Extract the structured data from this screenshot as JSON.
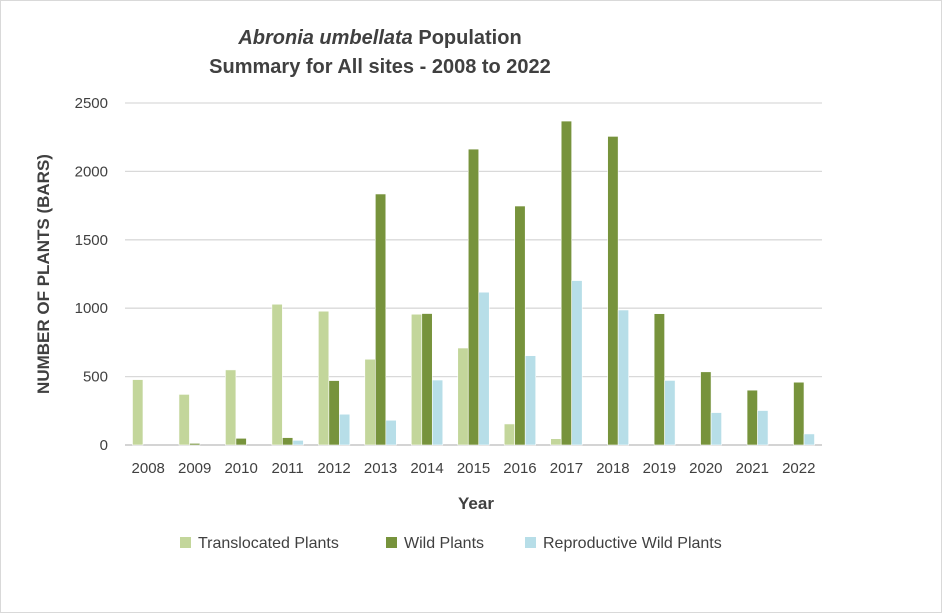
{
  "chart_data": {
    "type": "bar",
    "title_italic": "Abronia umbellata",
    "title_rest": " Population",
    "title_line2": "Summary for All sites - 2008 to 2022",
    "xlabel": "Year",
    "ylabel": "NUMBER OF PLANTS  (BARS)",
    "ylim": [
      0,
      2500
    ],
    "yticks": [
      0,
      500,
      1000,
      1500,
      2000,
      2500
    ],
    "grid": true,
    "legend_position": "bottom",
    "categories": [
      "2008",
      "2009",
      "2010",
      "2011",
      "2012",
      "2013",
      "2014",
      "2015",
      "2016",
      "2017",
      "2018",
      "2019",
      "2020",
      "2021",
      "2022"
    ],
    "series": [
      {
        "name": "Translocated Plants",
        "color": "#c3d69b",
        "values": [
          478,
          370,
          549,
          1029,
          978,
          627,
          956,
          709,
          154,
          46,
          0,
          0,
          0,
          0,
          0
        ]
      },
      {
        "name": "Wild Plants",
        "color": "#77933c",
        "values": [
          0,
          12,
          49,
          54,
          471,
          1835,
          961,
          2163,
          1747,
          2368,
          2256,
          960,
          535,
          401,
          459
        ]
      },
      {
        "name": "Reproductive Wild Plants",
        "color": "#b7dee8",
        "values": [
          0,
          0,
          0,
          34,
          225,
          181,
          475,
          1117,
          653,
          1202,
          987,
          472,
          237,
          252,
          81
        ]
      }
    ]
  }
}
